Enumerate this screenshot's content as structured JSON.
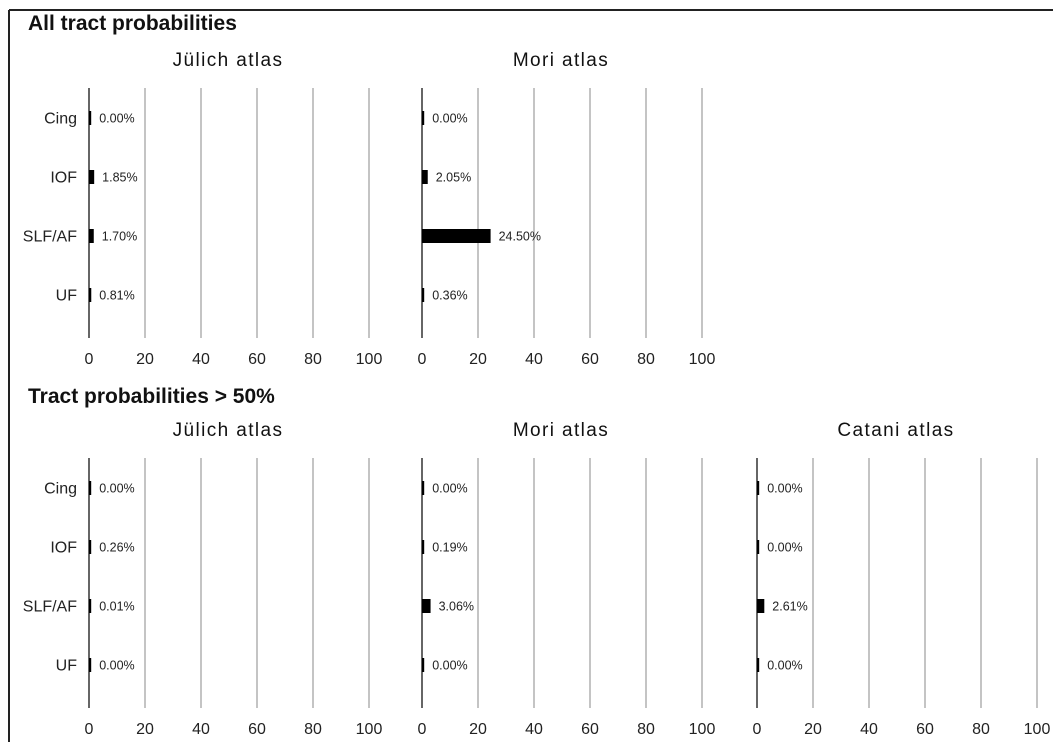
{
  "sections": [
    {
      "title": "All tract probabilities"
    },
    {
      "title": "Tract probabilities > 50%"
    }
  ],
  "chart_data": [
    {
      "type": "bar",
      "orientation": "horizontal",
      "section": "All tract probabilities",
      "title": "Jülich atlas",
      "categories": [
        "Cing",
        "IOF",
        "SLF/AF",
        "UF"
      ],
      "values": [
        0.0,
        1.85,
        1.7,
        0.81
      ],
      "value_labels": [
        "0.00%",
        "1.85%",
        "1.70%",
        "0.81%"
      ],
      "xlim": [
        0,
        100
      ],
      "xticks": [
        0,
        20,
        40,
        60,
        80,
        100
      ],
      "grid": true,
      "bar_color": "#000000"
    },
    {
      "type": "bar",
      "orientation": "horizontal",
      "section": "All tract probabilities",
      "title": "Mori atlas",
      "categories": [
        "Cing",
        "IOF",
        "SLF/AF",
        "UF"
      ],
      "values": [
        0.0,
        2.05,
        24.5,
        0.36
      ],
      "value_labels": [
        "0.00%",
        "2.05%",
        "24.50%",
        "0.36%"
      ],
      "xlim": [
        0,
        100
      ],
      "xticks": [
        0,
        20,
        40,
        60,
        80,
        100
      ],
      "grid": true,
      "bar_color": "#000000"
    },
    {
      "type": "bar",
      "orientation": "horizontal",
      "section": "Tract probabilities > 50%",
      "title": "Jülich atlas",
      "categories": [
        "Cing",
        "IOF",
        "SLF/AF",
        "UF"
      ],
      "values": [
        0.0,
        0.26,
        0.01,
        0.0
      ],
      "value_labels": [
        "0.00%",
        "0.26%",
        "0.01%",
        "0.00%"
      ],
      "xlim": [
        0,
        100
      ],
      "xticks": [
        0,
        20,
        40,
        60,
        80,
        100
      ],
      "grid": true,
      "bar_color": "#000000"
    },
    {
      "type": "bar",
      "orientation": "horizontal",
      "section": "Tract probabilities > 50%",
      "title": "Mori atlas",
      "categories": [
        "Cing",
        "IOF",
        "SLF/AF",
        "UF"
      ],
      "values": [
        0.0,
        0.19,
        3.06,
        0.0
      ],
      "value_labels": [
        "0.00%",
        "0.19%",
        "3.06%",
        "0.00%"
      ],
      "xlim": [
        0,
        100
      ],
      "xticks": [
        0,
        20,
        40,
        60,
        80,
        100
      ],
      "grid": true,
      "bar_color": "#000000"
    },
    {
      "type": "bar",
      "orientation": "horizontal",
      "section": "Tract probabilities > 50%",
      "title": "Catani atlas",
      "categories": [
        "Cing",
        "IOF",
        "SLF/AF",
        "UF"
      ],
      "values": [
        0.0,
        0.0,
        2.61,
        0.0
      ],
      "value_labels": [
        "0.00%",
        "0.00%",
        "2.61%",
        "0.00%"
      ],
      "xlim": [
        0,
        100
      ],
      "xticks": [
        0,
        20,
        40,
        60,
        80,
        100
      ],
      "grid": true,
      "bar_color": "#000000"
    }
  ]
}
